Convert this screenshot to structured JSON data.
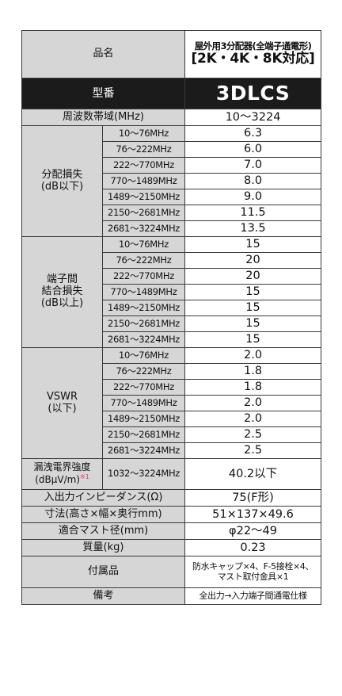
{
  "product": {
    "name_label": "品名",
    "name_line1": "屋外用3分配器(全端子通電形)",
    "name_line2": "[2K・4K・8K対応]",
    "model_label": "型番",
    "model_value": "3DLCS"
  },
  "freq_range": {
    "label": "周波数帯域(MHz)",
    "value": "10〜3224"
  },
  "distribution_loss": {
    "label_line1": "分配損失",
    "label_line2": "(dB以下)",
    "rows": [
      {
        "freq": "10〜76MHz",
        "value": "6.3"
      },
      {
        "freq": "76〜222MHz",
        "value": "6.0"
      },
      {
        "freq": "222〜770MHz",
        "value": "7.0"
      },
      {
        "freq": "770〜1489MHz",
        "value": "8.0"
      },
      {
        "freq": "1489〜2150MHz",
        "value": "9.0"
      },
      {
        "freq": "2150〜2681MHz",
        "value": "11.5"
      },
      {
        "freq": "2681〜3224MHz",
        "value": "13.5"
      }
    ]
  },
  "isolation": {
    "label_line1": "端子間",
    "label_line2": "結合損失",
    "label_line3": "(dB以上)",
    "rows": [
      {
        "freq": "10〜76MHz",
        "value": "15"
      },
      {
        "freq": "76〜222MHz",
        "value": "20"
      },
      {
        "freq": "222〜770MHz",
        "value": "20"
      },
      {
        "freq": "770〜1489MHz",
        "value": "15"
      },
      {
        "freq": "1489〜2150MHz",
        "value": "15"
      },
      {
        "freq": "2150〜2681MHz",
        "value": "15"
      },
      {
        "freq": "2681〜3224MHz",
        "value": "15"
      }
    ]
  },
  "vswr": {
    "label_line1": "VSWR",
    "label_line2": "(以下)",
    "rows": [
      {
        "freq": "10〜76MHz",
        "value": "2.0"
      },
      {
        "freq": "76〜222MHz",
        "value": "1.8"
      },
      {
        "freq": "222〜770MHz",
        "value": "1.8"
      },
      {
        "freq": "770〜1489MHz",
        "value": "2.0"
      },
      {
        "freq": "1489〜2150MHz",
        "value": "2.0"
      },
      {
        "freq": "2150〜2681MHz",
        "value": "2.5"
      },
      {
        "freq": "2681〜3224MHz",
        "value": "2.5"
      }
    ]
  },
  "leakage": {
    "label_line1": "漏洩電界強度",
    "label_line2": "(dBμV/m)",
    "note_mark": "※1",
    "freq": "1032〜3224MHz",
    "value": "40.2以下"
  },
  "impedance": {
    "label": "入出力インピーダンス(Ω)",
    "value": "75(F形)"
  },
  "dimensions": {
    "label": "寸法(高さ×幅×奥行mm)",
    "value": "51×137×49.6"
  },
  "mast": {
    "label": "適合マスト径(mm)",
    "value": "φ22〜49"
  },
  "mass": {
    "label": "質量(kg)",
    "value": "0.23"
  },
  "accessories": {
    "label": "付属品",
    "value_line1": "防水キャップ×4、F-5接栓×4、",
    "value_line2": "マスト取付金具×1"
  },
  "remarks": {
    "label": "備考",
    "value": "全出力→入力端子間通電仕様"
  }
}
